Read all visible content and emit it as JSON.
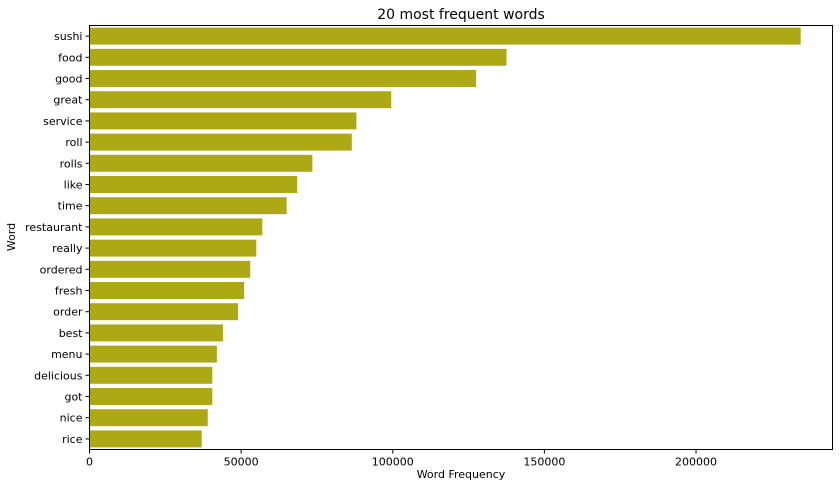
{
  "chart_data": {
    "type": "bar",
    "orientation": "horizontal",
    "title": "20 most frequent words",
    "xlabel": "Word Frequency",
    "ylabel": "Word",
    "xlim": [
      0,
      245000
    ],
    "xticks": [
      0,
      50000,
      100000,
      150000,
      200000
    ],
    "xtick_labels": [
      "0",
      "50000",
      "100000",
      "150000",
      "200000"
    ],
    "bar_color": "#aca914",
    "grid": false,
    "legend": "none",
    "categories": [
      "sushi",
      "food",
      "good",
      "great",
      "service",
      "roll",
      "rolls",
      "like",
      "time",
      "restaurant",
      "really",
      "ordered",
      "fresh",
      "order",
      "best",
      "menu",
      "delicious",
      "got",
      "nice",
      "rice"
    ],
    "values": [
      234500,
      137500,
      127500,
      99500,
      88000,
      86500,
      73500,
      68500,
      65000,
      57000,
      55000,
      53000,
      51000,
      49000,
      44000,
      42000,
      40500,
      40500,
      39000,
      37000
    ]
  }
}
